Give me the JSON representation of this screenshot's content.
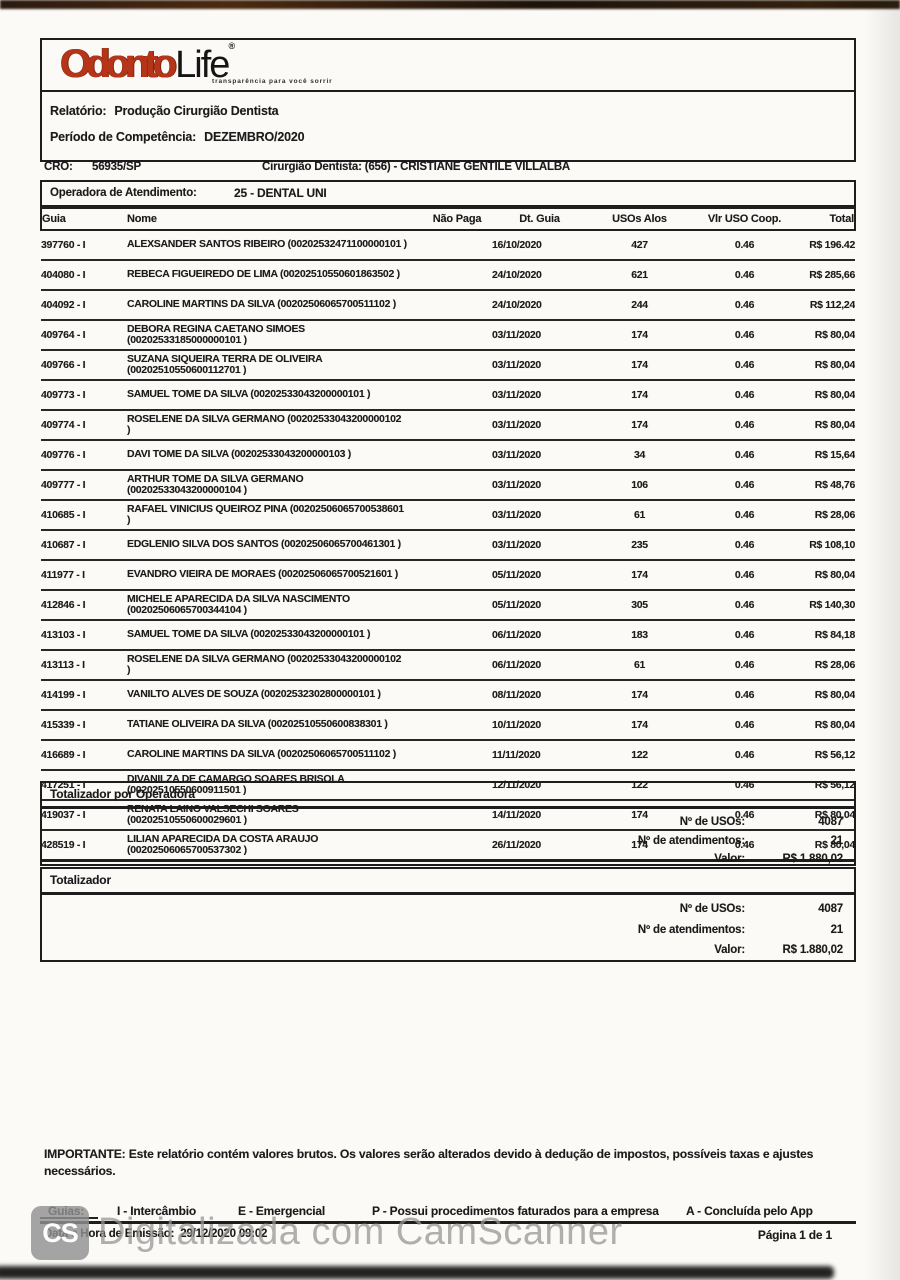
{
  "colors": {
    "logo_red": "#b63519",
    "text_black": "#1b1b1b",
    "watermark_gray": "#9b9b9b"
  },
  "header": {
    "logo": {
      "part1": "Odonto",
      "part2": "Life",
      "mark": "®",
      "tagline": "transparência para você sorrir"
    },
    "report_label": "Relatório:",
    "report_value": "Produção Cirurgião Dentista",
    "period_label": "Período de Competência:",
    "period_value": "DEZEMBRO/2020"
  },
  "info": {
    "cro_label": "CRO:",
    "cro_value": "56935/SP",
    "dentist_label": "Cirurgião Dentista:",
    "dentist_value": "(656) - CRISTIANE GENTILE VILLALBA",
    "operator_label": "Operadora de Atendimento:",
    "operator_value": "25 - DENTAL UNI"
  },
  "table": {
    "columns": [
      "Guia",
      "Nome",
      "Não Paga",
      "Dt. Guia",
      "USOs Alos",
      "Vlr USO Coop.",
      "Total"
    ],
    "rows": [
      {
        "guia": "397760 - I",
        "nome1": "ALEXSANDER SANTOS RIBEIRO (00202532471100000101 )",
        "nome2": "",
        "nao_paga": "",
        "dt_guia": "16/10/2020",
        "usos": "427",
        "vlr": "0.46",
        "total": "R$ 196.42"
      },
      {
        "guia": "404080 - I",
        "nome1": "REBECA FIGUEIREDO DE LIMA (00202510550601863502 )",
        "nome2": "",
        "nao_paga": "",
        "dt_guia": "24/10/2020",
        "usos": "621",
        "vlr": "0.46",
        "total": "R$ 285,66"
      },
      {
        "guia": "404092 - I",
        "nome1": "CAROLINE MARTINS DA SILVA (00202506065700511102 )",
        "nome2": "",
        "nao_paga": "",
        "dt_guia": "24/10/2020",
        "usos": "244",
        "vlr": "0.46",
        "total": "R$ 112,24"
      },
      {
        "guia": "409764 - I",
        "nome1": "DEBORA REGINA CAETANO SIMOES",
        "nome2": "(00202533185000000101 )",
        "nao_paga": "",
        "dt_guia": "03/11/2020",
        "usos": "174",
        "vlr": "0.46",
        "total": "R$ 80,04"
      },
      {
        "guia": "409766 - I",
        "nome1": "SUZANA SIQUEIRA TERRA DE OLIVEIRA",
        "nome2": "(00202510550600112701 )",
        "nao_paga": "",
        "dt_guia": "03/11/2020",
        "usos": "174",
        "vlr": "0.46",
        "total": "R$ 80,04"
      },
      {
        "guia": "409773 - I",
        "nome1": "SAMUEL TOME DA SILVA (00202533043200000101 )",
        "nome2": "",
        "nao_paga": "",
        "dt_guia": "03/11/2020",
        "usos": "174",
        "vlr": "0.46",
        "total": "R$ 80,04"
      },
      {
        "guia": "409774 - I",
        "nome1": "ROSELENE DA SILVA GERMANO (00202533043200000102",
        "nome2": ")",
        "nao_paga": "",
        "dt_guia": "03/11/2020",
        "usos": "174",
        "vlr": "0.46",
        "total": "R$ 80,04"
      },
      {
        "guia": "409776 - I",
        "nome1": "DAVI TOME DA SILVA (00202533043200000103 )",
        "nome2": "",
        "nao_paga": "",
        "dt_guia": "03/11/2020",
        "usos": "34",
        "vlr": "0.46",
        "total": "R$ 15,64"
      },
      {
        "guia": "409777 - I",
        "nome1": "ARTHUR TOME DA SILVA GERMANO",
        "nome2": "(00202533043200000104 )",
        "nao_paga": "",
        "dt_guia": "03/11/2020",
        "usos": "106",
        "vlr": "0.46",
        "total": "R$ 48,76"
      },
      {
        "guia": "410685 - I",
        "nome1": "RAFAEL VINICIUS QUEIROZ PINA (00202506065700538601",
        "nome2": ")",
        "nao_paga": "",
        "dt_guia": "03/11/2020",
        "usos": "61",
        "vlr": "0.46",
        "total": "R$ 28,06"
      },
      {
        "guia": "410687 - I",
        "nome1": "EDGLENIO SILVA DOS SANTOS (00202506065700461301 )",
        "nome2": "",
        "nao_paga": "",
        "dt_guia": "03/11/2020",
        "usos": "235",
        "vlr": "0.46",
        "total": "R$ 108,10"
      },
      {
        "guia": "411977 - I",
        "nome1": "EVANDRO VIEIRA DE MORAES (00202506065700521601 )",
        "nome2": "",
        "nao_paga": "",
        "dt_guia": "05/11/2020",
        "usos": "174",
        "vlr": "0.46",
        "total": "R$ 80,04"
      },
      {
        "guia": "412846 - I",
        "nome1": "MICHELE APARECIDA DA SILVA NASCIMENTO",
        "nome2": "(00202506065700344104 )",
        "nao_paga": "",
        "dt_guia": "05/11/2020",
        "usos": "305",
        "vlr": "0.46",
        "total": "R$ 140,30"
      },
      {
        "guia": "413103 - I",
        "nome1": "SAMUEL TOME DA SILVA (00202533043200000101 )",
        "nome2": "",
        "nao_paga": "",
        "dt_guia": "06/11/2020",
        "usos": "183",
        "vlr": "0.46",
        "total": "R$ 84,18"
      },
      {
        "guia": "413113 - I",
        "nome1": "ROSELENE DA SILVA GERMANO (00202533043200000102",
        "nome2": ")",
        "nao_paga": "",
        "dt_guia": "06/11/2020",
        "usos": "61",
        "vlr": "0.46",
        "total": "R$ 28,06"
      },
      {
        "guia": "414199 - I",
        "nome1": "VANILTO ALVES DE SOUZA (00202532302800000101 )",
        "nome2": "",
        "nao_paga": "",
        "dt_guia": "08/11/2020",
        "usos": "174",
        "vlr": "0.46",
        "total": "R$ 80,04"
      },
      {
        "guia": "415339 - I",
        "nome1": "TATIANE OLIVEIRA DA SILVA (00202510550600838301 )",
        "nome2": "",
        "nao_paga": "",
        "dt_guia": "10/11/2020",
        "usos": "174",
        "vlr": "0.46",
        "total": "R$ 80,04"
      },
      {
        "guia": "416689 - I",
        "nome1": "CAROLINE MARTINS DA SILVA (00202506065700511102 )",
        "nome2": "",
        "nao_paga": "",
        "dt_guia": "11/11/2020",
        "usos": "122",
        "vlr": "0.46",
        "total": "R$ 56,12"
      },
      {
        "guia": "417251 - I",
        "nome1": "DIVANILZA DE CAMARGO SOARES BRISOLA",
        "nome2": "(00202510550600911501 )",
        "nao_paga": "",
        "dt_guia": "12/11/2020",
        "usos": "122",
        "vlr": "0.46",
        "total": "R$ 56,12"
      },
      {
        "guia": "419037 - I",
        "nome1": "RENATA LAINO VALSECHI SOARES",
        "nome2": "(00202510550600029601 )",
        "nao_paga": "",
        "dt_guia": "14/11/2020",
        "usos": "174",
        "vlr": "0.46",
        "total": "R$ 80,04"
      },
      {
        "guia": "428519 - I",
        "nome1": "LILIAN APARECIDA DA COSTA ARAUJO",
        "nome2": "(00202506065700537302 )",
        "nao_paga": "",
        "dt_guia": "26/11/2020",
        "usos": "174",
        "vlr": "0.46",
        "total": "R$ 80,04"
      }
    ]
  },
  "totals_operadora": {
    "title": "Totalizador por Operadora",
    "rows": [
      {
        "label": "Nº de USOs:",
        "value": "4087"
      },
      {
        "label": "Nº de atendimentos:",
        "value": "21"
      },
      {
        "label": "Valor:",
        "value": "R$ 1.880,02"
      }
    ]
  },
  "totals_geral": {
    "title": "Totalizador",
    "rows": [
      {
        "label": "Nº de USOs:",
        "value": "4087"
      },
      {
        "label": "Nº de atendimentos:",
        "value": "21"
      },
      {
        "label": "Valor:",
        "value": "R$ 1.880,02"
      }
    ]
  },
  "notes": {
    "important": "IMPORTANTE: Este relatório contém valores brutos. Os valores serão alterados devido à dedução de impostos, possíveis taxas e ajustes necessários."
  },
  "legend": {
    "label": "Guias:",
    "items": [
      "I - Intercâmbio",
      "E - Emergencial",
      "P - Possui procedimentos faturados para a empresa",
      "A - Concluída pelo App"
    ]
  },
  "footer": {
    "emission_label": "Data e Hora de Emissão:",
    "emission_value": "29/12/2020 09:02",
    "page_label": "Página 1 de 1"
  },
  "watermark": {
    "icon_text": "CS",
    "text": "Digitalizada com CamScanner"
  }
}
